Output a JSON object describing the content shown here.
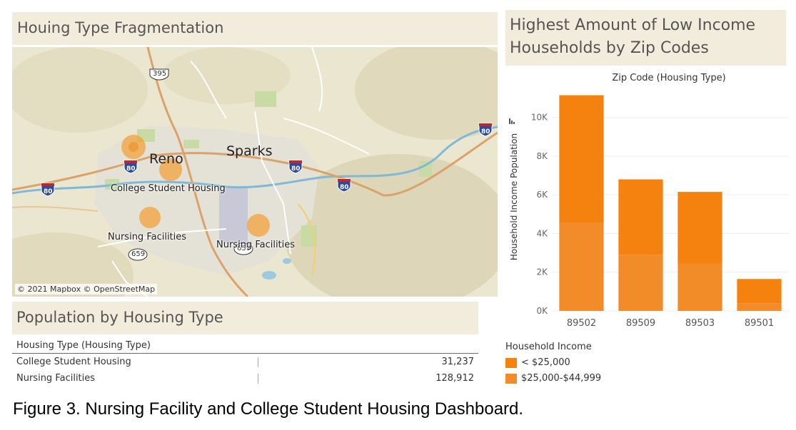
{
  "map_panel": {
    "title": "Houing Type Fragmentation",
    "attribution": "© 2021 Mapbox © OpenStreetMap",
    "cities": [
      "Reno",
      "Sparks"
    ],
    "markers": [
      {
        "label": "College Student Housing"
      },
      {
        "label": "Nursing Facilities"
      },
      {
        "label": "Nursing Facilities"
      }
    ],
    "route_shields": {
      "us_395": "395",
      "i80": "80",
      "r659": "659"
    },
    "marker_color": "#f3a13b"
  },
  "population_panel": {
    "title": "Population by Housing Type",
    "column_header": "Housing Type (Housing Type)",
    "rows": [
      {
        "type": "College Student Housing",
        "value": "31,237"
      },
      {
        "type": "Nursing Facilities",
        "value": "128,912"
      }
    ]
  },
  "bar_panel": {
    "title_line1": "Highest Amount of Low Income",
    "title_line2": "Households by Zip Codes"
  },
  "legend": {
    "title": "Household Income",
    "items": [
      {
        "label": "< $25,000",
        "color": "#f5820f"
      },
      {
        "label": "$25,000-$44,999",
        "color": "#f28c28"
      }
    ]
  },
  "chart_data": {
    "type": "bar",
    "stacked": true,
    "title": "Highest Amount of Low Income Households by Zip Codes",
    "header": "Zip Code (Housing Type)",
    "xlabel": "",
    "ylabel": "Household Income Population",
    "categories": [
      "89502",
      "89509",
      "89503",
      "89501"
    ],
    "series": [
      {
        "name": "$25,000-$44,999",
        "values": [
          4550,
          2900,
          2450,
          400
        ],
        "color": "#f28c28"
      },
      {
        "name": "< $25,000",
        "values": [
          6600,
          3900,
          3700,
          1250
        ],
        "color": "#f5820f"
      }
    ],
    "ylim": [
      0,
      11500
    ],
    "yticks": [
      0,
      2000,
      4000,
      6000,
      8000,
      10000
    ],
    "ytick_labels": [
      "0K",
      "2K",
      "4K",
      "6K",
      "8K",
      "10K"
    ],
    "grid": true
  },
  "caption": "Figure 3. Nursing Facility and College Student Housing Dashboard."
}
